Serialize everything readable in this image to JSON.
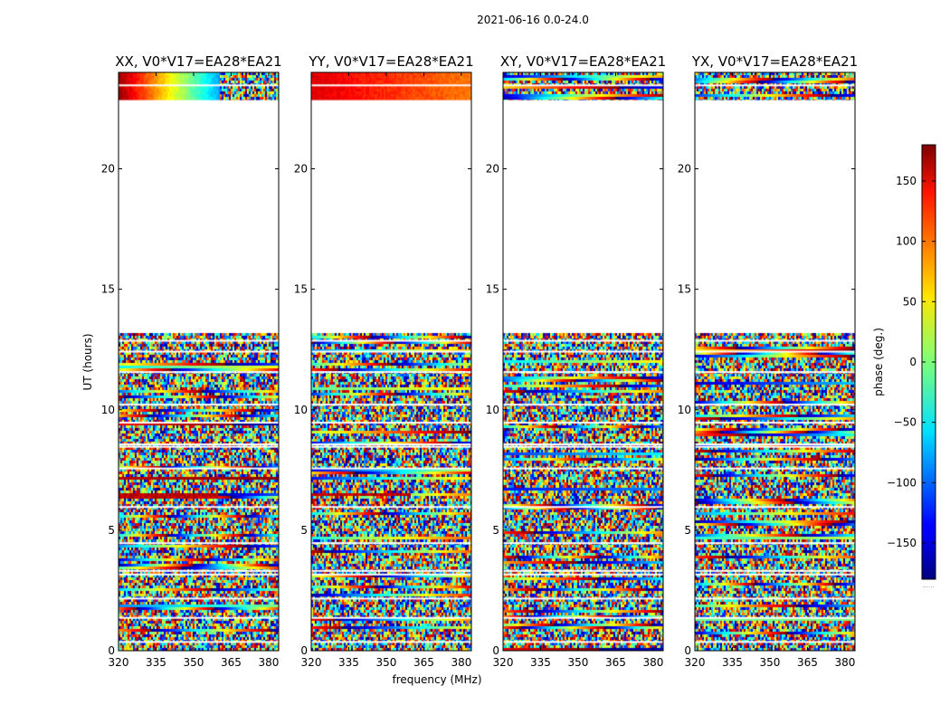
{
  "figure": {
    "suptitle": "2021-06-16 0.0-24.0",
    "xlabel": "frequency (MHz)",
    "ylabel": "UT (hours)",
    "colorbar_label": "phase (deg.)",
    "colorbar_note": "......"
  },
  "chart_data": {
    "type": "heatmap",
    "colormap": "jet",
    "x_ticks": [
      320,
      335,
      350,
      365,
      380
    ],
    "y_ticks": [
      0,
      5,
      10,
      15,
      20
    ],
    "xlim": [
      320,
      384
    ],
    "ylim": [
      0,
      24
    ],
    "colorbar": {
      "ticks": [
        150,
        100,
        50,
        0,
        -50,
        -100,
        -150
      ],
      "tick_labels": [
        "150",
        "100",
        "50",
        "0",
        "−50",
        "−100",
        "−150"
      ],
      "range": [
        -180,
        180
      ]
    },
    "data_gap_hours": [
      13.2,
      22.8
    ],
    "panels": [
      {
        "title": "XX, V0*V17=EA28*EA21",
        "pol": "XX",
        "seed": 11
      },
      {
        "title": "YY, V0*V17=EA28*EA21",
        "pol": "YY",
        "seed": 23
      },
      {
        "title": "XY, V0*V17=EA28*EA21",
        "pol": "XY",
        "seed": 37
      },
      {
        "title": "YX, V0*V17=EA28*EA21",
        "pol": "YX",
        "seed": 53
      }
    ]
  }
}
